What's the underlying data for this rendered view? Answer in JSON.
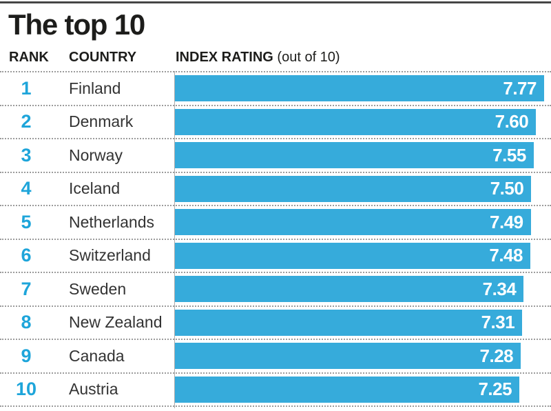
{
  "title": "The top 10",
  "header": {
    "rank": "RANK",
    "country": "COUNTRY",
    "index_rating": "INDEX RATING",
    "index_rating_note": "(out of 10)"
  },
  "colors": {
    "bar": "#36abdb",
    "rank_number": "#1ea5da",
    "separator": "#9b9b9b",
    "heading_text": "#1d1d1b",
    "country_text": "#333333",
    "value_text": "#ffffff"
  },
  "chart_data": {
    "type": "bar",
    "orientation": "horizontal",
    "title": "The top 10",
    "columns": [
      "RANK",
      "COUNTRY",
      "INDEX RATING (out of 10)"
    ],
    "value_scale_note": "out of 10",
    "xlim": [
      0,
      10
    ],
    "grid": false,
    "legend": false,
    "categories": [
      "Finland",
      "Denmark",
      "Norway",
      "Iceland",
      "Netherlands",
      "Switzerland",
      "Sweden",
      "New Zealand",
      "Canada",
      "Austria"
    ],
    "values": [
      7.77,
      7.6,
      7.55,
      7.5,
      7.49,
      7.48,
      7.34,
      7.31,
      7.28,
      7.25
    ],
    "rows": [
      {
        "rank": "1",
        "country": "Finland",
        "value": "7.77"
      },
      {
        "rank": "2",
        "country": "Denmark",
        "value": "7.60"
      },
      {
        "rank": "3",
        "country": "Norway",
        "value": "7.55"
      },
      {
        "rank": "4",
        "country": "Iceland",
        "value": "7.50"
      },
      {
        "rank": "5",
        "country": "Netherlands",
        "value": "7.49"
      },
      {
        "rank": "6",
        "country": "Switzerland",
        "value": "7.48"
      },
      {
        "rank": "7",
        "country": "Sweden",
        "value": "7.34"
      },
      {
        "rank": "8",
        "country": "New Zealand",
        "value": "7.31"
      },
      {
        "rank": "9",
        "country": "Canada",
        "value": "7.28"
      },
      {
        "rank": "10",
        "country": "Austria",
        "value": "7.25"
      }
    ]
  }
}
